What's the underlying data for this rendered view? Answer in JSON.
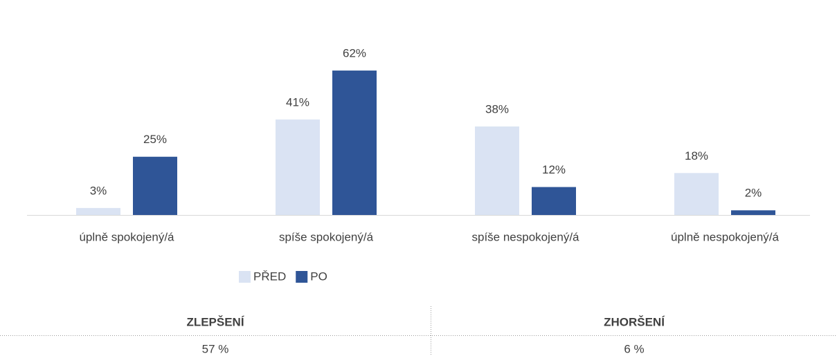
{
  "chart_data": {
    "type": "bar",
    "categories": [
      "úplně spokojený/á",
      "spíše spokojený/á",
      "spíše nespokojený/á",
      "úplně nespokojený/á"
    ],
    "series": [
      {
        "name": "PŘED",
        "color": "#dae3f3",
        "values": [
          3,
          41,
          38,
          18
        ],
        "value_labels": [
          "3%",
          "41%",
          "38%",
          "18%"
        ]
      },
      {
        "name": "PO",
        "color": "#2f5597",
        "values": [
          25,
          62,
          12,
          2
        ],
        "value_labels": [
          "25%",
          "62%",
          "12%",
          "2%"
        ]
      }
    ],
    "legend": "bottom"
  },
  "table": {
    "header": [
      "ZLEPŠENÍ",
      "ZHORŠENÍ"
    ],
    "rows": [
      [
        "57 %",
        "6 %"
      ]
    ]
  }
}
